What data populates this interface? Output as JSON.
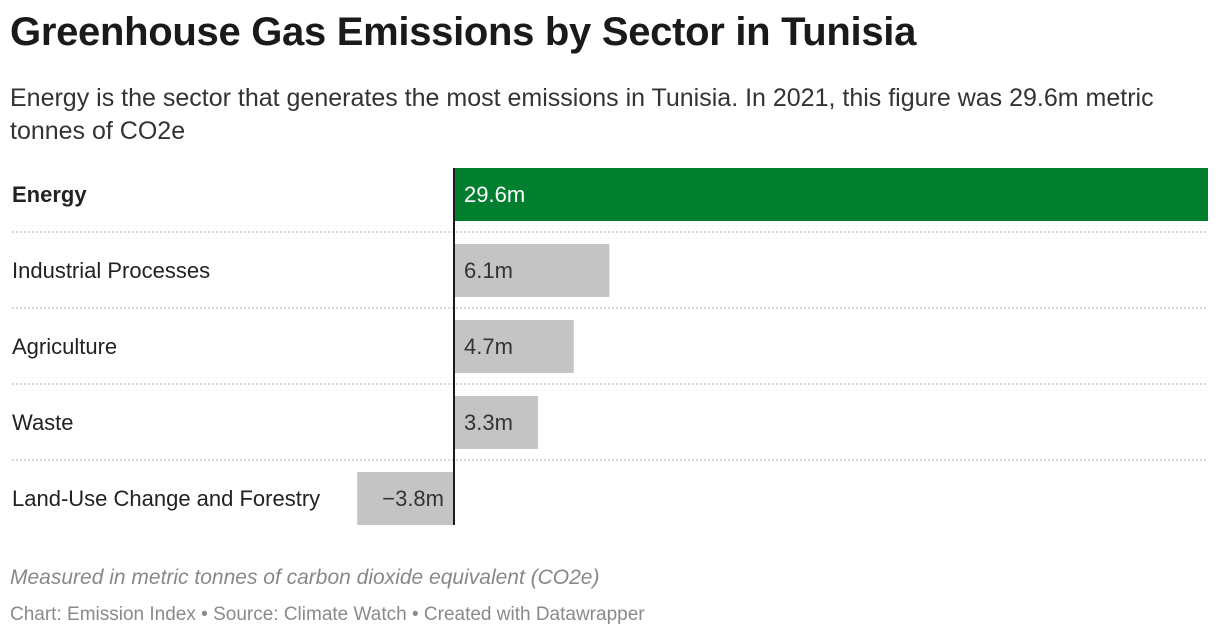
{
  "title": "Greenhouse Gas Emissions by Sector in Tunisia",
  "subtitle": "Energy is the sector that generates the most emissions in Tunisia. In 2021, this figure was 29.6m metric tonnes of CO2e",
  "notes": "Measured in metric tonnes of carbon dioxide equivalent (CO2e)",
  "footer": {
    "chart_by": "Chart: Emission Index",
    "source": "Source: Climate Watch",
    "created_with": "Created with Datawrapper",
    "separator": " • "
  },
  "colors": {
    "highlight": "#00802f",
    "default_bar": "#c4c4c4",
    "highlight_text": "#ffffff",
    "default_text": "#333333",
    "axis": "#1a1a1a",
    "divider": "#cccccc"
  },
  "chart_data": {
    "type": "bar",
    "orientation": "horizontal",
    "categories": [
      "Energy",
      "Industrial Processes",
      "Agriculture",
      "Waste",
      "Land-Use Change and Forestry"
    ],
    "values": [
      29.6,
      6.1,
      4.7,
      3.3,
      -3.8
    ],
    "value_labels": [
      "29.6m",
      "6.1m",
      "4.7m",
      "3.3m",
      "−3.8m"
    ],
    "unit": "million metric tonnes CO2e",
    "highlighted": [
      "Energy"
    ],
    "xlim": [
      -3.8,
      29.6
    ],
    "grid": false
  }
}
